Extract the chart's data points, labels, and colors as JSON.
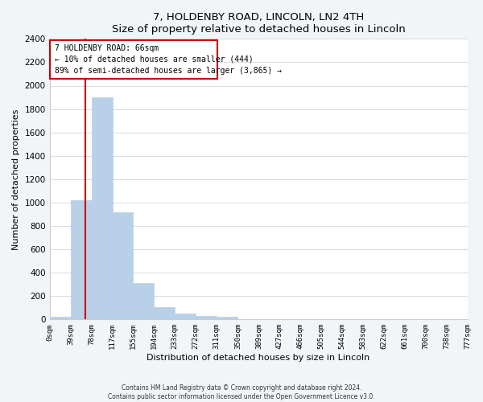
{
  "title": "7, HOLDENBY ROAD, LINCOLN, LN2 4TH",
  "subtitle": "Size of property relative to detached houses in Lincoln",
  "xlabel": "Distribution of detached houses by size in Lincoln",
  "ylabel": "Number of detached properties",
  "bar_edges": [
    0,
    39,
    78,
    117,
    155,
    194,
    233,
    272,
    311,
    350,
    389,
    427,
    466,
    505,
    544,
    583,
    622,
    661,
    700,
    738,
    777
  ],
  "bar_heights": [
    20,
    1020,
    1900,
    920,
    315,
    105,
    48,
    30,
    20,
    0,
    0,
    0,
    0,
    0,
    0,
    0,
    0,
    0,
    0,
    0
  ],
  "bar_color": "#b8d0e8",
  "bar_edge_color": "#b8d0e8",
  "tick_labels": [
    "0sqm",
    "39sqm",
    "78sqm",
    "117sqm",
    "155sqm",
    "194sqm",
    "233sqm",
    "272sqm",
    "311sqm",
    "350sqm",
    "389sqm",
    "427sqm",
    "466sqm",
    "505sqm",
    "544sqm",
    "583sqm",
    "622sqm",
    "661sqm",
    "700sqm",
    "738sqm",
    "777sqm"
  ],
  "ylim": [
    0,
    2400
  ],
  "yticks": [
    0,
    200,
    400,
    600,
    800,
    1000,
    1200,
    1400,
    1600,
    1800,
    2000,
    2200,
    2400
  ],
  "vline_x": 66,
  "vline_color": "#cc0000",
  "annotation_line1": "7 HOLDENBY ROAD: 66sqm",
  "annotation_line2": "← 10% of detached houses are smaller (444)",
  "annotation_line3": "89% of semi-detached houses are larger (3,865) →",
  "footer1": "Contains HM Land Registry data © Crown copyright and database right 2024.",
  "footer2": "Contains public sector information licensed under the Open Government Licence v3.0.",
  "bg_color": "#f2f5f8",
  "plot_bg_color": "#ffffff",
  "grid_color": "#d4dce6"
}
